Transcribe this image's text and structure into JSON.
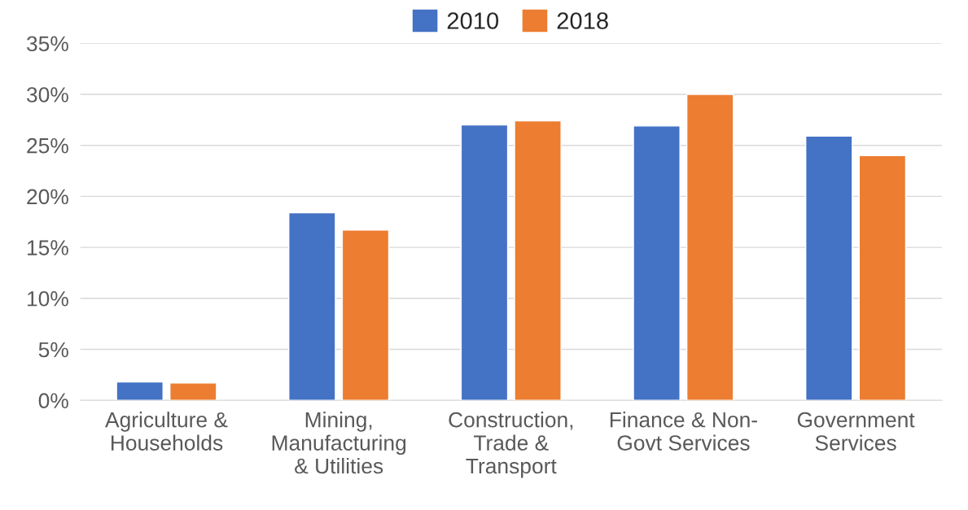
{
  "chart_data": {
    "type": "bar",
    "categories": [
      "Agriculture & Households",
      "Mining, Manufacturing & Utilities",
      "Construction, Trade & Transport",
      "Finance & Non-Govt Services",
      "Government Services"
    ],
    "series": [
      {
        "name": "2010",
        "color": "#4472c4",
        "values": [
          1.8,
          18.4,
          27.0,
          26.9,
          25.9
        ]
      },
      {
        "name": "2018",
        "color": "#ed7d31",
        "values": [
          1.7,
          16.7,
          27.4,
          30.0,
          24.0
        ]
      }
    ],
    "ylim": [
      0,
      35
    ],
    "yticks": [
      {
        "value": 0,
        "label": "0%"
      },
      {
        "value": 5,
        "label": "5%"
      },
      {
        "value": 10,
        "label": "10%"
      },
      {
        "value": 15,
        "label": "15%"
      },
      {
        "value": 20,
        "label": "20%"
      },
      {
        "value": 25,
        "label": "25%"
      },
      {
        "value": 30,
        "label": "30%"
      },
      {
        "value": 35,
        "label": "35%"
      }
    ],
    "grid": "y",
    "legend": "top"
  }
}
